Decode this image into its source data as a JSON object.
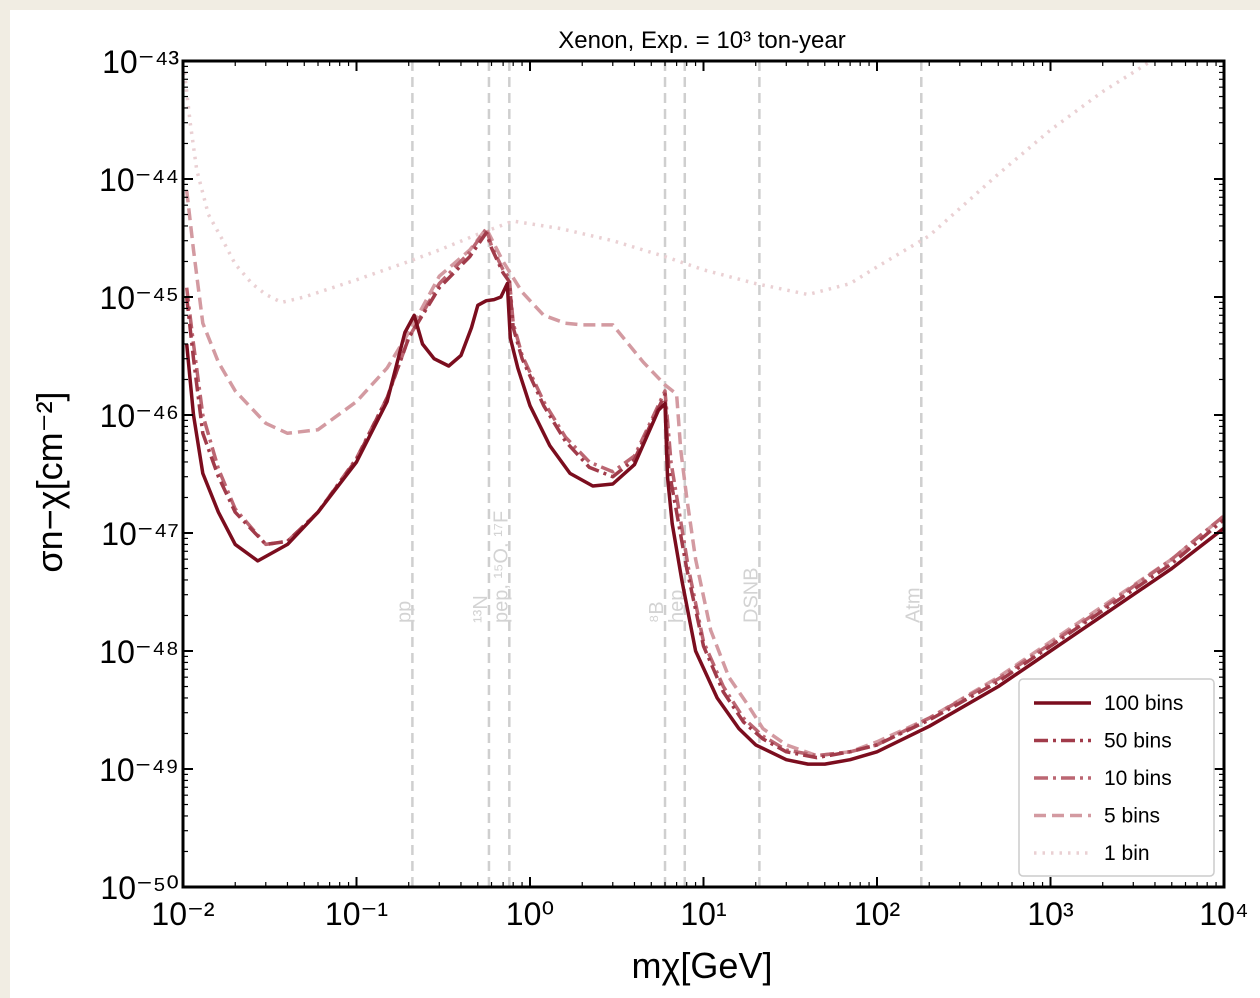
{
  "chart_data": {
    "type": "line",
    "title": "Xenon, Exp. = 10³ ton-year",
    "xlabel": "mχ[GeV]",
    "ylabel": "σn−χ[cm⁻²]",
    "xscale": "log",
    "yscale": "log",
    "xlim": [
      0.01,
      10000
    ],
    "ylim": [
      1e-50,
      1e-43
    ],
    "x_tick_labels": [
      "10⁻²",
      "10⁻¹",
      "10⁰",
      "10¹",
      "10²",
      "10³",
      "10⁴"
    ],
    "y_tick_labels": [
      "10⁻⁵⁰",
      "10⁻⁴⁹",
      "10⁻⁴⁸",
      "10⁻⁴⁷",
      "10⁻⁴⁶",
      "10⁻⁴⁵",
      "10⁻⁴⁴",
      "10⁻⁴³"
    ],
    "grid": false,
    "legend_position": "lower-right",
    "vertical_lines": [
      {
        "x": 0.21,
        "label": "pp"
      },
      {
        "x": 0.58,
        "label": "¹³N"
      },
      {
        "x": 0.76,
        "label": "pep, ¹⁵O, ¹⁷F"
      },
      {
        "x": 6.0,
        "label": "⁸B"
      },
      {
        "x": 7.8,
        "label": "hep"
      },
      {
        "x": 21,
        "label": "DSNB"
      },
      {
        "x": 180,
        "label": "Atm"
      }
    ],
    "series": [
      {
        "name": "100 bins",
        "color": "#7b0d1e",
        "dash": "solid",
        "points": [
          [
            0.0105,
            4e-46
          ],
          [
            0.0115,
            1e-46
          ],
          [
            0.013,
            3.2e-47
          ],
          [
            0.016,
            1.5e-47
          ],
          [
            0.02,
            8e-48
          ],
          [
            0.027,
            5.8e-48
          ],
          [
            0.04,
            8e-48
          ],
          [
            0.06,
            1.5e-47
          ],
          [
            0.1,
            4e-47
          ],
          [
            0.15,
            1.3e-46
          ],
          [
            0.19,
            5e-46
          ],
          [
            0.215,
            7e-46
          ],
          [
            0.24,
            4e-46
          ],
          [
            0.28,
            3e-46
          ],
          [
            0.34,
            2.6e-46
          ],
          [
            0.4,
            3.2e-46
          ],
          [
            0.46,
            5.5e-46
          ],
          [
            0.5,
            8.5e-46
          ],
          [
            0.56,
            9.3e-46
          ],
          [
            0.62,
            9.5e-46
          ],
          [
            0.68,
            1e-45
          ],
          [
            0.74,
            1.3e-45
          ],
          [
            0.77,
            4.5e-46
          ],
          [
            0.85,
            2.5e-46
          ],
          [
            1.0,
            1.2e-46
          ],
          [
            1.3,
            5.5e-47
          ],
          [
            1.7,
            3.2e-47
          ],
          [
            2.3,
            2.5e-47
          ],
          [
            3.0,
            2.6e-47
          ],
          [
            4.0,
            3.8e-47
          ],
          [
            5.0,
            8e-47
          ],
          [
            5.5,
            1.1e-46
          ],
          [
            6.0,
            1.25e-46
          ],
          [
            6.2,
            3e-47
          ],
          [
            6.6,
            1.2e-47
          ],
          [
            7.5,
            4e-48
          ],
          [
            9,
            1e-48
          ],
          [
            12,
            4e-49
          ],
          [
            16,
            2.2e-49
          ],
          [
            20,
            1.6e-49
          ],
          [
            30,
            1.2e-49
          ],
          [
            40,
            1.1e-49
          ],
          [
            50,
            1.1e-49
          ],
          [
            70,
            1.2e-49
          ],
          [
            100,
            1.4e-49
          ],
          [
            200,
            2.3e-49
          ],
          [
            500,
            5e-49
          ],
          [
            1000,
            1e-48
          ],
          [
            2000,
            2e-48
          ],
          [
            5000,
            5e-48
          ],
          [
            10000,
            1.1e-47
          ]
        ]
      },
      {
        "name": "50 bins",
        "color": "#a13b4a",
        "dash": "dashdot",
        "points": [
          [
            0.0105,
            1e-45
          ],
          [
            0.0115,
            3e-46
          ],
          [
            0.013,
            7e-47
          ],
          [
            0.016,
            3e-47
          ],
          [
            0.02,
            1.5e-47
          ],
          [
            0.03,
            8e-48
          ],
          [
            0.04,
            8.5e-48
          ],
          [
            0.06,
            1.5e-47
          ],
          [
            0.1,
            4.2e-47
          ],
          [
            0.15,
            1.4e-46
          ],
          [
            0.2,
            4.5e-46
          ],
          [
            0.3,
            1.2e-45
          ],
          [
            0.45,
            2.2e-45
          ],
          [
            0.56,
            3.5e-45
          ],
          [
            0.6,
            2.6e-45
          ],
          [
            0.7,
            1.6e-45
          ],
          [
            0.76,
            1.35e-45
          ],
          [
            0.8,
            5.5e-46
          ],
          [
            0.9,
            3e-46
          ],
          [
            1.2,
            1.2e-46
          ],
          [
            1.6,
            6e-47
          ],
          [
            2.2,
            3.6e-47
          ],
          [
            3.0,
            3e-47
          ],
          [
            4.0,
            4.2e-47
          ],
          [
            5.0,
            8.5e-47
          ],
          [
            6.0,
            1.5e-46
          ],
          [
            6.3,
            3.5e-47
          ],
          [
            7.0,
            1.5e-47
          ],
          [
            8,
            5e-48
          ],
          [
            10,
            1.1e-48
          ],
          [
            13,
            4.5e-49
          ],
          [
            17,
            2.5e-49
          ],
          [
            22,
            1.8e-49
          ],
          [
            30,
            1.4e-49
          ],
          [
            45,
            1.25e-49
          ],
          [
            70,
            1.4e-49
          ],
          [
            100,
            1.6e-49
          ],
          [
            200,
            2.6e-49
          ],
          [
            500,
            5.5e-49
          ],
          [
            1000,
            1.1e-48
          ],
          [
            2000,
            2.2e-48
          ],
          [
            5000,
            5.5e-48
          ],
          [
            10000,
            1.3e-47
          ]
        ]
      },
      {
        "name": "10 bins",
        "color": "#bb6672",
        "dash": "dashdot",
        "points": [
          [
            0.0105,
            1.2e-45
          ],
          [
            0.0115,
            4e-46
          ],
          [
            0.013,
            1e-46
          ],
          [
            0.016,
            3.5e-47
          ],
          [
            0.02,
            1.6e-47
          ],
          [
            0.03,
            8e-48
          ],
          [
            0.04,
            8.5e-48
          ],
          [
            0.06,
            1.5e-47
          ],
          [
            0.1,
            4.3e-47
          ],
          [
            0.15,
            1.4e-46
          ],
          [
            0.2,
            4.5e-46
          ],
          [
            0.3,
            1.3e-45
          ],
          [
            0.45,
            2.4e-45
          ],
          [
            0.56,
            3.8e-45
          ],
          [
            0.6,
            2.7e-45
          ],
          [
            0.7,
            1.7e-45
          ],
          [
            0.76,
            1.45e-45
          ],
          [
            0.8,
            6e-46
          ],
          [
            0.9,
            3.2e-46
          ],
          [
            1.2,
            1.3e-46
          ],
          [
            1.6,
            6.5e-47
          ],
          [
            2.2,
            4e-47
          ],
          [
            3.0,
            3.3e-47
          ],
          [
            4.0,
            4.5e-47
          ],
          [
            5.0,
            9e-47
          ],
          [
            6.0,
            1.6e-46
          ],
          [
            6.5,
            4e-47
          ],
          [
            7.2,
            1.6e-47
          ],
          [
            8.2,
            5e-48
          ],
          [
            10,
            1.2e-48
          ],
          [
            13,
            5e-49
          ],
          [
            17,
            2.7e-49
          ],
          [
            22,
            1.9e-49
          ],
          [
            30,
            1.45e-49
          ],
          [
            45,
            1.3e-49
          ],
          [
            70,
            1.4e-49
          ],
          [
            100,
            1.6e-49
          ],
          [
            200,
            2.7e-49
          ],
          [
            500,
            5.8e-49
          ],
          [
            1000,
            1.15e-48
          ],
          [
            2000,
            2.3e-48
          ],
          [
            5000,
            6e-48
          ],
          [
            10000,
            1.4e-47
          ]
        ]
      },
      {
        "name": "5 bins",
        "color": "#d39aa1",
        "dash": "dashed",
        "points": [
          [
            0.0105,
            8e-45
          ],
          [
            0.0115,
            2.5e-45
          ],
          [
            0.013,
            6e-46
          ],
          [
            0.016,
            2.8e-46
          ],
          [
            0.02,
            1.6e-46
          ],
          [
            0.03,
            8.5e-47
          ],
          [
            0.04,
            7e-47
          ],
          [
            0.06,
            7.5e-47
          ],
          [
            0.1,
            1.3e-46
          ],
          [
            0.15,
            2.5e-46
          ],
          [
            0.2,
            5e-46
          ],
          [
            0.3,
            1.5e-45
          ],
          [
            0.45,
            2.5e-45
          ],
          [
            0.56,
            3.8e-45
          ],
          [
            0.7,
            2e-45
          ],
          [
            0.9,
            1.1e-45
          ],
          [
            1.2,
            7e-46
          ],
          [
            1.6,
            6e-46
          ],
          [
            2.0,
            5.8e-46
          ],
          [
            3.0,
            5.8e-46
          ],
          [
            4.5,
            2.8e-46
          ],
          [
            6.0,
            1.8e-46
          ],
          [
            7.0,
            1.5e-46
          ],
          [
            7.4,
            5e-47
          ],
          [
            8,
            2e-47
          ],
          [
            9,
            6e-48
          ],
          [
            11,
            1.5e-48
          ],
          [
            14,
            6e-49
          ],
          [
            18,
            3.5e-49
          ],
          [
            22,
            2.2e-49
          ],
          [
            30,
            1.6e-49
          ],
          [
            45,
            1.3e-49
          ],
          [
            70,
            1.4e-49
          ],
          [
            100,
            1.7e-49
          ],
          [
            200,
            2.7e-49
          ],
          [
            500,
            6e-49
          ],
          [
            1000,
            1.2e-48
          ],
          [
            2000,
            2.4e-48
          ],
          [
            5000,
            6e-48
          ],
          [
            10000,
            1.4e-47
          ]
        ]
      },
      {
        "name": "1 bin",
        "color": "#ead0d3",
        "dash": "dotted",
        "points": [
          [
            0.0102,
            8e-44
          ],
          [
            0.011,
            3e-44
          ],
          [
            0.012,
            1.2e-44
          ],
          [
            0.014,
            5e-45
          ],
          [
            0.017,
            3e-45
          ],
          [
            0.02,
            1.9e-45
          ],
          [
            0.025,
            1.3e-45
          ],
          [
            0.03,
            1.05e-45
          ],
          [
            0.037,
            9e-46
          ],
          [
            0.05,
            1e-45
          ],
          [
            0.1,
            1.4e-45
          ],
          [
            0.2,
            2e-45
          ],
          [
            0.3,
            2.5e-45
          ],
          [
            0.5,
            3.4e-45
          ],
          [
            0.8,
            4.4e-45
          ],
          [
            1.5,
            3.8e-45
          ],
          [
            3,
            3e-45
          ],
          [
            6,
            2.2e-45
          ],
          [
            10,
            1.7e-45
          ],
          [
            20,
            1.3e-45
          ],
          [
            40,
            1.05e-45
          ],
          [
            70,
            1.3e-45
          ],
          [
            100,
            1.8e-45
          ],
          [
            200,
            3.3e-45
          ],
          [
            500,
            1.1e-44
          ],
          [
            1000,
            2.6e-44
          ],
          [
            2000,
            5.5e-44
          ],
          [
            3000,
            8e-44
          ],
          [
            3800,
            1e-43
          ]
        ]
      }
    ]
  }
}
